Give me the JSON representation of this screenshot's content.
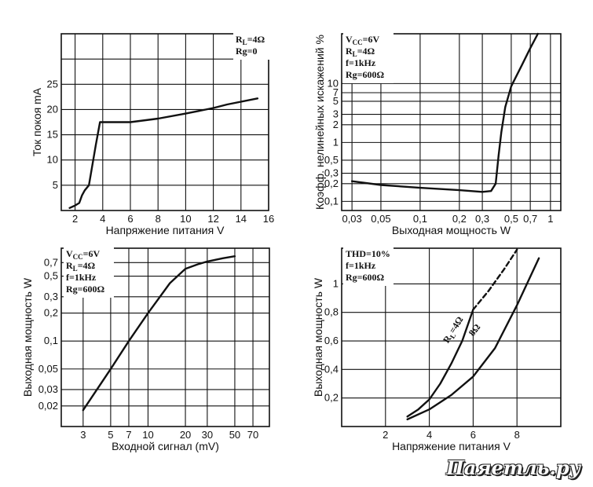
{
  "watermark": "Паяетль.ру",
  "chart_data": [
    {
      "id": "c1",
      "type": "line",
      "xlabel": "Напряжение питания V",
      "ylabel": "Ток покоя mA",
      "xlim": [
        1,
        16
      ],
      "ylim": [
        0,
        35
      ],
      "xticks": [
        2,
        4,
        6,
        8,
        10,
        12,
        14,
        16
      ],
      "yticks": [
        5,
        10,
        15,
        20,
        25
      ],
      "grid": true,
      "notes": [
        "R_L=4Ω",
        "Rg=0"
      ],
      "series": [
        {
          "x": [
            1.6,
            2.0,
            2.3,
            2.5,
            2.7,
            3.0,
            3.5,
            3.8,
            4,
            6,
            8,
            10,
            12,
            13,
            15.2
          ],
          "y": [
            0.5,
            1,
            1.5,
            3,
            4,
            5,
            13,
            17.5,
            17.5,
            17.5,
            18.2,
            19.2,
            20.3,
            21,
            22.2
          ]
        }
      ]
    },
    {
      "id": "c2",
      "type": "line",
      "xscale": "log",
      "yscale": "log",
      "xlabel": "Выходная мощность W",
      "ylabel": "Коэфф. нелинейных искажений %",
      "xlim": [
        0.025,
        1.2
      ],
      "ylim": [
        0.07,
        70
      ],
      "xticks": [
        0.03,
        0.05,
        0.1,
        0.2,
        0.3,
        0.5,
        0.7,
        1
      ],
      "xticklabels": [
        "0,03",
        "0,05",
        "0,1",
        "0,2",
        "0,3",
        "0,5",
        "0,7",
        "1"
      ],
      "yticks": [
        0.1,
        0.2,
        0.3,
        0.5,
        1,
        2,
        3,
        5,
        7,
        10
      ],
      "yticklabels": [
        "0,1",
        "0,2",
        "0,3",
        "0,5",
        "1",
        "2",
        "3",
        "5",
        "7",
        "10"
      ],
      "grid": true,
      "notes": [
        "V_CC=6V",
        "R_L=4Ω",
        "f=1kHz",
        "Rg=600Ω"
      ],
      "series": [
        {
          "x": [
            0.03,
            0.05,
            0.1,
            0.2,
            0.3,
            0.35,
            0.38,
            0.4,
            0.42,
            0.45,
            0.5,
            0.6,
            0.7,
            0.8
          ],
          "y": [
            0.22,
            0.19,
            0.17,
            0.155,
            0.145,
            0.15,
            0.2,
            0.6,
            1.5,
            4,
            9,
            20,
            40,
            70
          ]
        }
      ]
    },
    {
      "id": "c3",
      "type": "line",
      "xscale": "log",
      "yscale": "log",
      "xlabel": "Входной сигнал (mV)",
      "ylabel": "Выходная мощность W",
      "xlim": [
        2,
        95
      ],
      "ylim": [
        0.012,
        1.0
      ],
      "xticks": [
        3,
        5,
        7,
        10,
        20,
        30,
        50,
        70
      ],
      "xticklabels": [
        "3",
        "5",
        "7",
        "10",
        "20",
        "30",
        "50",
        "70"
      ],
      "yticks": [
        0.02,
        0.03,
        0.05,
        0.1,
        0.2,
        0.3,
        0.5,
        0.7
      ],
      "yticklabels": [
        "0,02",
        "0,03",
        "0,05",
        "0,1",
        "0,2",
        "0,3",
        "0,5",
        "0,7"
      ],
      "grid": true,
      "notes": [
        "V_CC=6V",
        "R_L=4Ω",
        "f=1kHz",
        "Rg=600Ω"
      ],
      "series": [
        {
          "x": [
            3,
            5,
            7,
            10,
            15,
            20,
            25,
            30,
            40,
            50
          ],
          "y": [
            0.018,
            0.05,
            0.1,
            0.2,
            0.42,
            0.6,
            0.67,
            0.72,
            0.78,
            0.82
          ]
        }
      ]
    },
    {
      "id": "c4",
      "type": "line",
      "xlabel": "Напряжение питания V",
      "ylabel": "Выходная мощность W",
      "xlim": [
        0,
        10
      ],
      "ylim": [
        0,
        1.25
      ],
      "xticks": [
        2,
        4,
        6,
        8
      ],
      "yticks": [
        0.2,
        0.4,
        0.6,
        0.8,
        1
      ],
      "yticklabels": [
        "0,2",
        "0,4",
        "0,6",
        "0,8",
        "1"
      ],
      "grid": true,
      "notes": [
        "THD=10%",
        "f=1kHz",
        "Rg=600Ω"
      ],
      "series": [
        {
          "name": "R_L=4Ω",
          "x": [
            3,
            3.5,
            4,
            4.5,
            5,
            5.5,
            6
          ],
          "y": [
            0.07,
            0.12,
            0.19,
            0.3,
            0.44,
            0.6,
            0.82
          ]
        },
        {
          "name": "R_L=4Ω (dashed)",
          "x": [
            6,
            6.7,
            7.4,
            8
          ],
          "y": [
            0.82,
            0.95,
            1.1,
            1.24
          ]
        },
        {
          "name": "8Ω",
          "x": [
            3,
            4,
            5,
            6,
            7,
            8,
            9
          ],
          "y": [
            0.05,
            0.12,
            0.22,
            0.35,
            0.55,
            0.85,
            1.18
          ]
        }
      ],
      "curve_labels": [
        "R_L=4Ω",
        "8Ω"
      ]
    }
  ]
}
